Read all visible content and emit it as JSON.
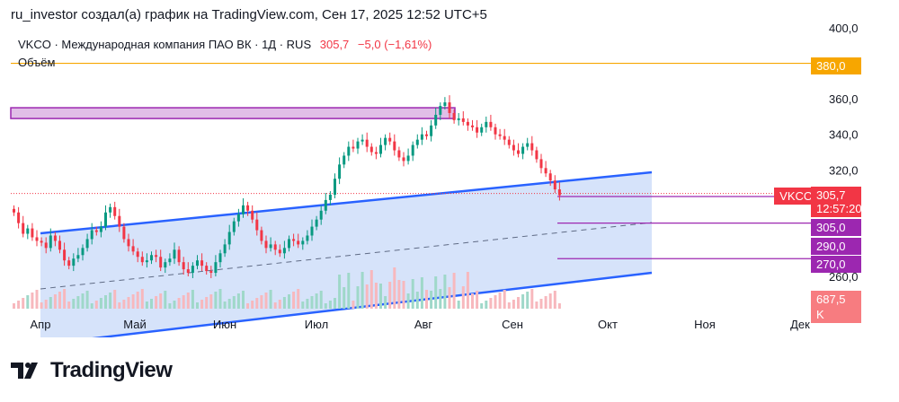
{
  "header": {
    "text": "ru_investor создал(а) график на TradingView.com, Сен 17, 2025 12:52 UTC+5"
  },
  "legend": {
    "symbol_line": "VKCO · Международная компания ПАО ВК · 1Д · RUS",
    "price": "305,7",
    "change": "−5,0 (−1,61%)",
    "volume_label": "Объём"
  },
  "price_scale": {
    "ticks": [
      "400,0",
      "360,0",
      "340,0",
      "320,0",
      "260,0"
    ]
  },
  "time_axis": {
    "labels": [
      "Апр",
      "Май",
      "Июн",
      "Июл",
      "Авг",
      "Сен",
      "Окт",
      "Ноя",
      "Дек"
    ]
  },
  "tags": {
    "level_380": "380,0",
    "symbol_name": "VKCO",
    "last_price": "305,7",
    "countdown": "12:57:20",
    "level_305": "305,0",
    "level_290": "290,0",
    "level_270": "270,0",
    "volume_value": "687,5 K"
  },
  "footer": {
    "brand": "TradingView"
  },
  "colors": {
    "up": "#089981",
    "down": "#f23645",
    "channel_line": "#2962ff",
    "channel_fill": "#bbd0f7",
    "level_orange": "#f7a600",
    "level_purple": "#9c27b0",
    "resistance_box": "#e1bee7"
  },
  "chart_data": {
    "type": "candlestick",
    "symbol": "VKCO",
    "timeframe": "1Д",
    "y_range": [
      247,
      405
    ],
    "horizontal_levels": [
      380,
      305,
      290,
      270
    ],
    "resistance_zone": [
      354,
      357
    ],
    "candles_close": [
      296,
      290,
      284,
      287,
      282,
      280,
      279,
      276,
      283,
      280,
      275,
      269,
      266,
      270,
      272,
      276,
      281,
      286,
      285,
      288,
      296,
      299,
      294,
      288,
      281,
      277,
      274,
      271,
      268,
      269,
      272,
      271,
      265,
      268,
      270,
      275,
      268,
      264,
      262,
      266,
      269,
      266,
      263,
      262,
      268,
      273,
      278,
      285,
      291,
      295,
      300,
      297,
      292,
      286,
      280,
      276,
      278,
      275,
      273,
      276,
      281,
      280,
      278,
      280,
      283,
      288,
      292,
      297,
      303,
      306,
      315,
      323,
      328,
      333,
      332,
      336,
      337,
      333,
      330,
      329,
      334,
      338,
      336,
      331,
      327,
      325,
      328,
      334,
      337,
      340,
      339,
      345,
      351,
      356,
      358,
      352,
      348,
      349,
      347,
      345,
      344,
      341,
      344,
      347,
      344,
      340,
      339,
      337,
      334,
      331,
      329,
      333,
      335,
      331,
      326,
      321,
      318,
      314,
      309,
      305.7
    ],
    "volume_note": "volume histogram at bottom"
  }
}
